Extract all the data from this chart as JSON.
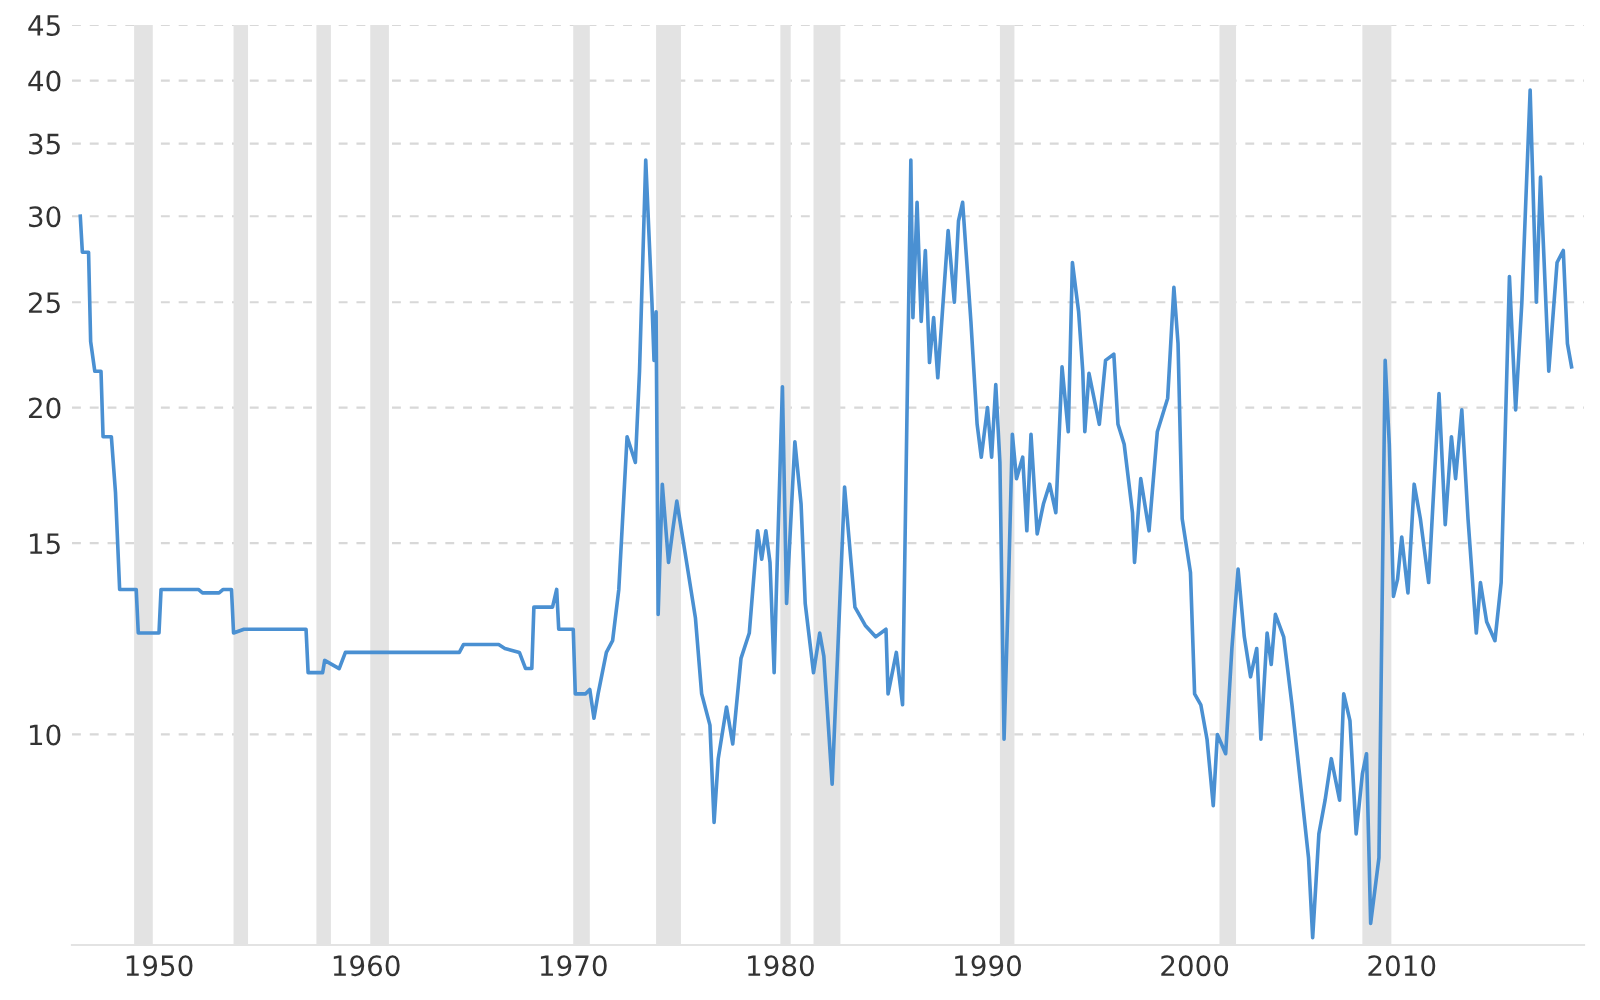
{
  "chart_data": {
    "type": "line",
    "log": "y",
    "grid": "y",
    "xlim": [
      1945.8,
      2018.8
    ],
    "xticks": [
      1950,
      1960,
      1970,
      1980,
      1990,
      2000,
      2010
    ],
    "ylim": [
      6.4,
      45
    ],
    "yticks": [
      10,
      15,
      20,
      25,
      30,
      35,
      40,
      45
    ],
    "bands": [
      {
        "axis": "x",
        "from": 1948.8,
        "to": 1949.7,
        "color": "#e3e3e3"
      },
      {
        "axis": "x",
        "from": 1953.6,
        "to": 1954.3,
        "color": "#e3e3e3"
      },
      {
        "axis": "x",
        "from": 1957.6,
        "to": 1958.3,
        "color": "#e3e3e3"
      },
      {
        "axis": "x",
        "from": 1960.2,
        "to": 1961.1,
        "color": "#e3e3e3"
      },
      {
        "axis": "x",
        "from": 1970.0,
        "to": 1970.8,
        "color": "#e3e3e3"
      },
      {
        "axis": "x",
        "from": 1974.0,
        "to": 1975.2,
        "color": "#e3e3e3"
      },
      {
        "axis": "x",
        "from": 1980.0,
        "to": 1980.5,
        "color": "#e3e3e3"
      },
      {
        "axis": "x",
        "from": 1981.6,
        "to": 1982.9,
        "color": "#e3e3e3"
      },
      {
        "axis": "x",
        "from": 1990.6,
        "to": 1991.3,
        "color": "#e3e3e3"
      },
      {
        "axis": "x",
        "from": 2001.2,
        "to": 2002.0,
        "color": "#e3e3e3"
      },
      {
        "axis": "x",
        "from": 2008.1,
        "to": 2009.5,
        "color": "#e3e3e3"
      }
    ],
    "series": [
      {
        "color": "#4a90d2",
        "x": [
          1946.2,
          1946.3,
          1946.6,
          1946.7,
          1946.9,
          1947.2,
          1947.3,
          1947.7,
          1947.9,
          1948.1,
          1948.9,
          1949.0,
          1950.0,
          1950.1,
          1951.9,
          1952.1,
          1952.9,
          1953.1,
          1953.5,
          1953.6,
          1954.1,
          1957.1,
          1957.2,
          1957.9,
          1958.0,
          1958.7,
          1959.0,
          1959.4,
          1964.5,
          1964.7,
          1966.4,
          1966.7,
          1967.4,
          1967.7,
          1968.0,
          1968.1,
          1969.0,
          1969.2,
          1969.3,
          1970.0,
          1970.1,
          1970.6,
          1970.8,
          1971.0,
          1971.2,
          1971.6,
          1971.9,
          1972.2,
          1972.6,
          1973.0,
          1973.2,
          1973.5,
          1973.8,
          1973.9,
          1974.0,
          1974.1,
          1974.3,
          1974.6,
          1974.8,
          1975.0,
          1975.4,
          1975.9,
          1976.2,
          1976.6,
          1976.8,
          1977.0,
          1977.4,
          1977.7,
          1978.1,
          1978.5,
          1978.9,
          1979.1,
          1979.3,
          1979.5,
          1979.7,
          1979.8,
          1980.1,
          1980.3,
          1980.7,
          1981.0,
          1981.2,
          1981.6,
          1981.9,
          1982.1,
          1982.5,
          1982.8,
          1983.1,
          1983.4,
          1983.6,
          1984.1,
          1984.6,
          1985.1,
          1985.2,
          1985.6,
          1985.9,
          1986.3,
          1986.4,
          1986.6,
          1986.8,
          1987.0,
          1987.2,
          1987.4,
          1987.6,
          1988.1,
          1988.4,
          1988.6,
          1988.8,
          1989.2,
          1989.5,
          1989.7,
          1990.0,
          1990.2,
          1990.4,
          1990.6,
          1990.8,
          1991.0,
          1991.2,
          1991.4,
          1991.7,
          1991.9,
          1992.1,
          1992.4,
          1992.7,
          1993.0,
          1993.3,
          1993.6,
          1993.9,
          1994.1,
          1994.4,
          1994.6,
          1994.7,
          1994.9,
          1995.4,
          1995.7,
          1996.1,
          1996.3,
          1996.6,
          1997.0,
          1997.1,
          1997.4,
          1997.8,
          1998.2,
          1998.7,
          1999.0,
          1999.2,
          1999.4,
          1999.8,
          2000.0,
          2000.3,
          2000.6,
          2000.9,
          2001.1,
          2001.5,
          2001.8,
          2002.1,
          2002.4,
          2002.7,
          2003.0,
          2003.2,
          2003.5,
          2003.7,
          2003.9,
          2004.3,
          2004.7,
          2005.2,
          2005.5,
          2005.7,
          2006.0,
          2006.3,
          2006.6,
          2007.0,
          2007.2,
          2007.5,
          2007.8,
          2008.1,
          2008.3,
          2008.5,
          2008.9,
          2009.2,
          2009.4,
          2009.6,
          2009.8,
          2010.0,
          2010.3,
          2010.6,
          2010.9,
          2011.3,
          2011.8,
          2012.1,
          2012.4,
          2012.6,
          2012.9,
          2013.2,
          2013.6,
          2013.8,
          2014.1,
          2014.5,
          2014.8,
          2015.2,
          2015.5,
          2015.8,
          2016.2,
          2016.5,
          2016.7,
          2017.1,
          2017.5,
          2017.8,
          2018.0,
          2018.2
        ],
        "values": [
          30,
          27.8,
          27.8,
          23.0,
          21.6,
          21.6,
          18.8,
          18.8,
          16.7,
          13.6,
          13.6,
          12.4,
          12.4,
          13.6,
          13.6,
          13.5,
          13.5,
          13.6,
          13.6,
          12.4,
          12.5,
          12.5,
          11.4,
          11.4,
          11.7,
          11.5,
          11.9,
          11.9,
          11.9,
          12.1,
          12.1,
          12.0,
          11.9,
          11.5,
          11.5,
          13.1,
          13.1,
          13.6,
          12.5,
          12.5,
          10.9,
          10.9,
          11.0,
          10.35,
          10.9,
          11.9,
          12.2,
          13.6,
          18.8,
          17.8,
          21.6,
          33.8,
          25.0,
          22.1,
          24.5,
          12.9,
          17.0,
          14.4,
          15.4,
          16.4,
          14.7,
          12.8,
          10.9,
          10.2,
          8.3,
          9.5,
          10.6,
          9.8,
          11.75,
          12.4,
          15.4,
          14.5,
          15.4,
          14.4,
          11.4,
          13.4,
          20.9,
          13.2,
          18.6,
          16.3,
          13.2,
          11.4,
          12.4,
          11.8,
          9.0,
          12.3,
          16.9,
          14.5,
          13.1,
          12.6,
          12.3,
          12.5,
          10.9,
          11.9,
          10.65,
          33.8,
          24.2,
          30.9,
          24.0,
          27.9,
          22.0,
          24.2,
          21.3,
          29.1,
          25.0,
          29.7,
          30.9,
          24.0,
          19.3,
          18.0,
          20.0,
          18.0,
          21.0,
          17.8,
          9.9,
          13.4,
          18.9,
          17.2,
          18.0,
          15.4,
          18.9,
          15.3,
          16.3,
          17.0,
          16.0,
          21.8,
          19.0,
          27.2,
          24.5,
          21.6,
          19.0,
          21.5,
          19.3,
          22.1,
          22.4,
          19.3,
          18.5,
          16.0,
          14.4,
          17.2,
          15.4,
          19.0,
          20.4,
          25.8,
          22.9,
          15.8,
          14.1,
          10.9,
          10.65,
          9.9,
          8.6,
          10.0,
          9.6,
          12.0,
          14.2,
          12.3,
          11.3,
          12.0,
          9.9,
          12.4,
          11.6,
          12.9,
          12.3,
          10.65,
          8.7,
          7.7,
          6.5,
          8.1,
          8.7,
          9.5,
          8.7,
          10.9,
          10.3,
          8.1,
          9.2,
          9.6,
          6.7,
          7.7,
          22.1,
          18.5,
          13.4,
          13.9,
          15.2,
          13.5,
          17.0,
          15.8,
          13.8,
          20.6,
          15.6,
          18.8,
          17.2,
          19.9,
          15.8,
          12.4,
          13.8,
          12.7,
          12.2,
          13.8,
          26.4,
          19.9,
          25.0,
          39.2,
          25.0,
          32.6,
          21.6,
          27.2,
          27.9,
          22.9,
          21.8
        ]
      }
    ]
  }
}
